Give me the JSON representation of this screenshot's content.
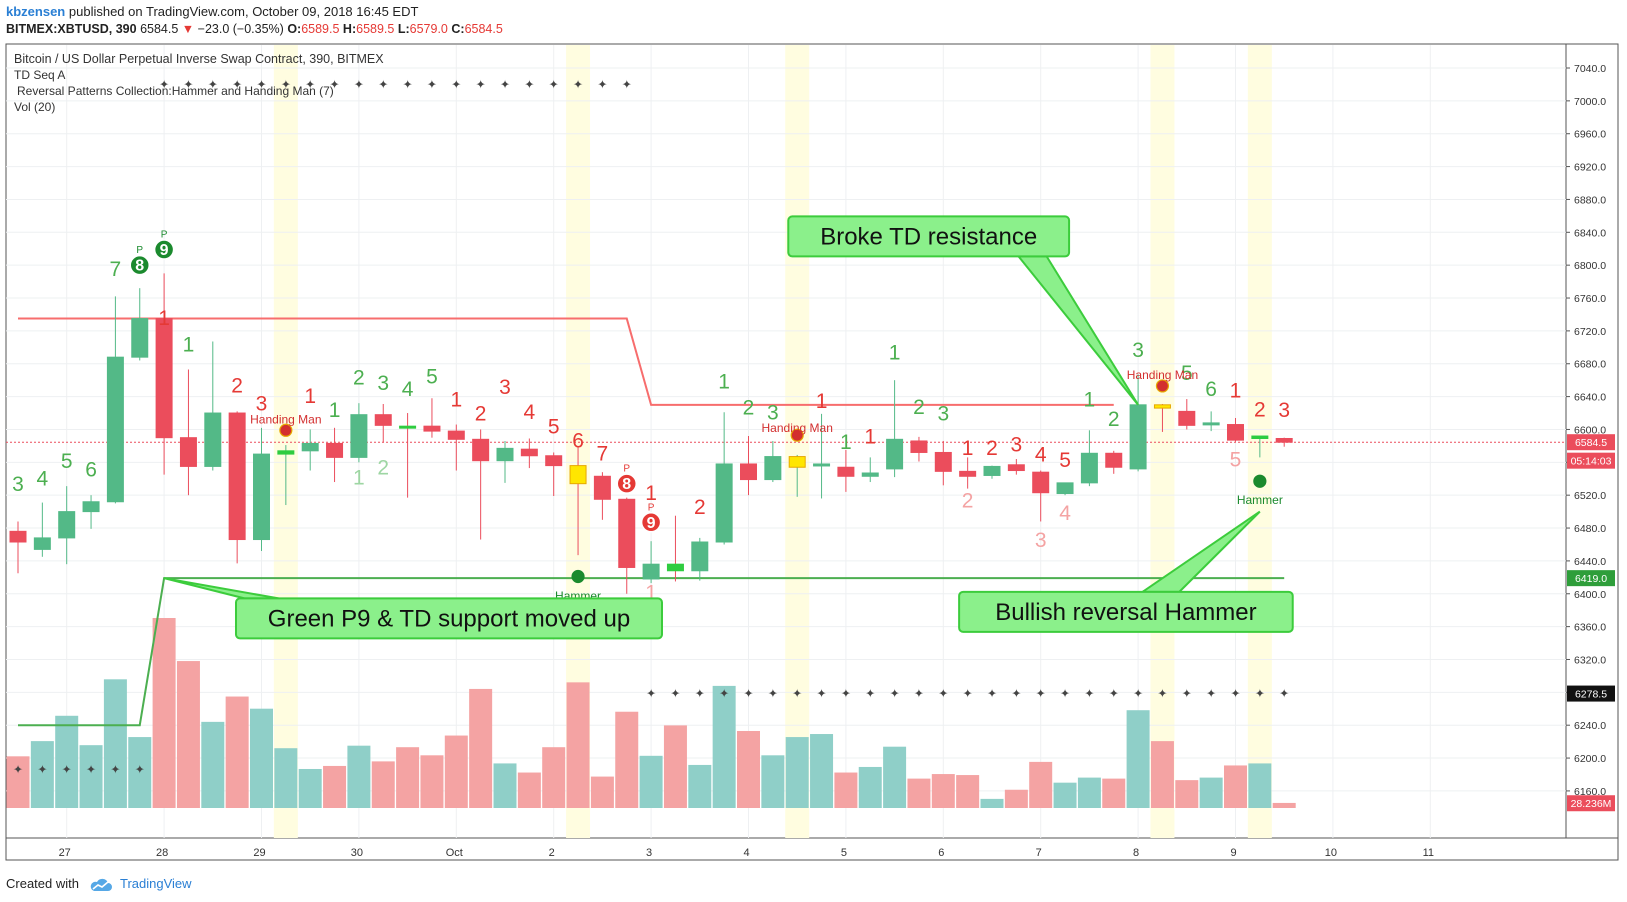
{
  "header": {
    "author": "kbzensen",
    "published_text": "published on TradingView.com, October 09, 2018 16:45 EDT",
    "symbol": "BITMEX:XBTUSD, 390",
    "last": "6584.5",
    "change": "−23.0 (−0.35%)",
    "open_label": "O:",
    "open": "6589.5",
    "high_label": "H:",
    "high": "6589.5",
    "low_label": "L:",
    "low": "6579.0",
    "close_label": "C:",
    "close": "6584.5"
  },
  "series_title": "Bitcoin / US Dollar Perpetual Inverse Swap Contract, 390, BITMEX",
  "indicators": [
    "TD Seq A",
    "Reversal Patterns Collection:Hammer and Handing Man (7)",
    "Vol (20)"
  ],
  "footer": {
    "created_with": "Created with",
    "brand": "TradingView"
  },
  "colors": {
    "up": "#53b987",
    "down": "#eb4d5c",
    "doji_up": "#2ecc40",
    "highlight": "#fffde0",
    "resistance": "#f76d6d",
    "support": "#4caf50",
    "callout_fill": "#8bf08b",
    "callout_border": "#3ccc3c",
    "vol_up": "#8fcfc8",
    "vol_down": "#f4a3a3"
  },
  "chart_data": {
    "type": "candlestick",
    "y_ticks": [
      "7040.0",
      "7000.0",
      "6960.0",
      "6920.0",
      "6880.0",
      "6840.0",
      "6800.0",
      "6760.0",
      "6720.0",
      "6680.0",
      "6640.0",
      "6600.0",
      "6560.0",
      "6520.0",
      "6480.0",
      "6440.0",
      "6400.0",
      "6360.0",
      "6320.0",
      "6280.0",
      "6240.0",
      "6200.0",
      "6160.0"
    ],
    "y_range": [
      6140,
      7060
    ],
    "x_labels": [
      {
        "label": "27",
        "i": 2
      },
      {
        "label": "28",
        "i": 6
      },
      {
        "label": "29",
        "i": 10
      },
      {
        "label": "30",
        "i": 14
      },
      {
        "label": "Oct",
        "i": 18
      },
      {
        "label": "2",
        "i": 22
      },
      {
        "label": "3",
        "i": 26
      },
      {
        "label": "4",
        "i": 30
      },
      {
        "label": "5",
        "i": 34
      },
      {
        "label": "6",
        "i": 38
      },
      {
        "label": "7",
        "i": 42
      },
      {
        "label": "8",
        "i": 46
      },
      {
        "label": "9",
        "i": 50
      },
      {
        "label": "10",
        "i": 54
      },
      {
        "label": "11",
        "i": 58
      }
    ],
    "price_tags": [
      {
        "label": "6584.5",
        "value": 6584.5,
        "color": "#eb4d5c"
      },
      {
        "label": "05:14:03",
        "value": 6562,
        "color": "#eb4d5c"
      },
      {
        "label": "6419.0",
        "value": 6419,
        "color": "#2e9e3a"
      },
      {
        "label": "6278.5",
        "value": 6278.5,
        "color": "#111111"
      },
      {
        "label": "28.236M",
        "value": 6145,
        "color": "#eb4d5c"
      }
    ],
    "candles": [
      [
        6476,
        6488,
        6425,
        6463
      ],
      [
        6454,
        6511,
        6445,
        6468
      ],
      [
        6468,
        6531,
        6436,
        6500
      ],
      [
        6500,
        6520,
        6479,
        6512
      ],
      [
        6512,
        6762,
        6510,
        6688
      ],
      [
        6688,
        6772,
        6684,
        6735
      ],
      [
        6735,
        6790,
        6545,
        6590
      ],
      [
        6590,
        6673,
        6520,
        6555
      ],
      [
        6555,
        6707,
        6550,
        6620
      ],
      [
        6620,
        6622,
        6437,
        6466
      ],
      [
        6466,
        6602,
        6452,
        6570
      ],
      [
        6570,
        6581,
        6508,
        6574
      ],
      [
        6574,
        6600,
        6550,
        6583
      ],
      [
        6583,
        6602,
        6536,
        6566
      ],
      [
        6566,
        6632,
        6560,
        6618
      ],
      [
        6618,
        6631,
        6584,
        6605
      ],
      [
        6604,
        6620,
        6517,
        6602
      ],
      [
        6604,
        6638,
        6590,
        6598
      ],
      [
        6598,
        6606,
        6550,
        6588
      ],
      [
        6588,
        6600,
        6466,
        6562
      ],
      [
        6562,
        6586,
        6535,
        6577
      ],
      [
        6576,
        6589,
        6553,
        6568
      ],
      [
        6568,
        6572,
        6519,
        6556
      ],
      [
        6556,
        6579,
        6447,
        6534
      ],
      [
        6543,
        6548,
        6490,
        6515
      ],
      [
        6515,
        6517,
        6400,
        6432
      ],
      [
        6418,
        6464,
        6413,
        6436
      ],
      [
        6436,
        6495,
        6415,
        6428
      ],
      [
        6428,
        6468,
        6416,
        6463
      ],
      [
        6463,
        6621,
        6460,
        6558
      ],
      [
        6558,
        6592,
        6520,
        6539
      ],
      [
        6539,
        6586,
        6536,
        6567
      ],
      [
        6554,
        6569,
        6518,
        6567
      ],
      [
        6558,
        6619,
        6516,
        6558
      ],
      [
        6554,
        6575,
        6524,
        6543
      ],
      [
        6543,
        6566,
        6536,
        6547
      ],
      [
        6552,
        6660,
        6542,
        6588
      ],
      [
        6586,
        6591,
        6561,
        6572
      ],
      [
        6572,
        6586,
        6532,
        6549
      ],
      [
        6549,
        6566,
        6528,
        6543
      ],
      [
        6544,
        6556,
        6540,
        6555
      ],
      [
        6557,
        6564,
        6545,
        6550
      ],
      [
        6548,
        6550,
        6488,
        6523
      ],
      [
        6522,
        6535,
        6520,
        6535
      ],
      [
        6535,
        6599,
        6531,
        6571
      ],
      [
        6571,
        6574,
        6546,
        6554
      ],
      [
        6552,
        6667,
        6549,
        6630
      ],
      [
        6630,
        6631,
        6597,
        6626
      ],
      [
        6622,
        6637,
        6600,
        6605
      ],
      [
        6608,
        6622,
        6598,
        6608
      ],
      [
        6606,
        6614,
        6585,
        6587
      ],
      [
        6589,
        6592,
        6566,
        6592
      ],
      [
        6589,
        6590,
        6579,
        6584.5
      ]
    ],
    "candle_style": {
      "27": "doji",
      "23": "yellow",
      "32": "yellow",
      "47": "yellow",
      "11": "doji",
      "51": "doji",
      "16": "doji"
    },
    "volume": [
      10.2,
      13.2,
      18.2,
      12.4,
      25.4,
      14.0,
      37.5,
      29.0,
      17.0,
      22.0,
      19.6,
      11.8,
      7.7,
      8.3,
      12.3,
      9.2,
      12.0,
      10.4,
      14.3,
      23.5,
      8.8,
      7.0,
      12.0,
      24.8,
      6.2,
      19.0,
      10.3,
      16.3,
      8.5,
      24.1,
      15.2,
      10.4,
      14.0,
      14.6,
      7.0,
      8.1,
      12.1,
      5.8,
      6.7,
      6.5,
      1.8,
      3.6,
      9.1,
      5.0,
      6.0,
      5.8,
      19.3,
      13.2,
      5.5,
      6.0,
      8.4,
      8.8,
      1.0
    ],
    "volume_max": 37.5,
    "td_counts": [
      {
        "i": 0,
        "text": "3",
        "color": "#4caf50",
        "y": 6525
      },
      {
        "i": 1,
        "text": "4",
        "color": "#4caf50",
        "y": 6532
      },
      {
        "i": 2,
        "text": "5",
        "color": "#4caf50",
        "y": 6553
      },
      {
        "i": 3,
        "text": "6",
        "color": "#4caf50",
        "y": 6543
      },
      {
        "i": 4,
        "text": "7",
        "color": "#4caf50",
        "y": 6787
      },
      {
        "i": 7,
        "text": "1",
        "color": "#4caf50",
        "y": 6695
      },
      {
        "i": 6,
        "text": "1",
        "color": "#e53935",
        "y": 6727
      },
      {
        "i": 9,
        "text": "2",
        "color": "#e53935",
        "y": 6645
      },
      {
        "i": 10,
        "text": "3",
        "color": "#e53935",
        "y": 6623
      },
      {
        "i": 12,
        "text": "1",
        "color": "#e53935",
        "y": 6632
      },
      {
        "i": 13,
        "text": "1",
        "color": "#4caf50",
        "y": 6615
      },
      {
        "i": 14,
        "text": "2",
        "color": "#4caf50",
        "y": 6655
      },
      {
        "i": 15,
        "text": "3",
        "color": "#4caf50",
        "y": 6648
      },
      {
        "i": 16,
        "text": "4",
        "color": "#4caf50",
        "y": 6641
      },
      {
        "i": 17,
        "text": "5",
        "color": "#4caf50",
        "y": 6656
      },
      {
        "i": 18,
        "text": "1",
        "color": "#e53935",
        "y": 6628
      },
      {
        "i": 19,
        "text": "2",
        "color": "#e53935",
        "y": 6611
      },
      {
        "i": 20,
        "text": "3",
        "color": "#e53935",
        "y": 6643
      },
      {
        "i": 21,
        "text": "4",
        "color": "#e53935",
        "y": 6613
      },
      {
        "i": 22,
        "text": "5",
        "color": "#e53935",
        "y": 6595
      },
      {
        "i": 23,
        "text": "6",
        "color": "#e53935",
        "y": 6578
      },
      {
        "i": 24,
        "text": "7",
        "color": "#e53935",
        "y": 6562
      },
      {
        "i": 14,
        "text": "1",
        "color": "#9ed6a3",
        "y": 6533
      },
      {
        "i": 15,
        "text": "2",
        "color": "#9ed6a3",
        "y": 6545
      },
      {
        "i": 26,
        "text": "1",
        "color": "#e53935",
        "y": 6514
      },
      {
        "i": 28,
        "text": "2",
        "color": "#e53935",
        "y": 6497
      },
      {
        "i": 26,
        "text": "1",
        "color": "#f4a3a3",
        "y": 6393
      },
      {
        "i": 29,
        "text": "1",
        "color": "#4caf50",
        "y": 6650
      },
      {
        "i": 30,
        "text": "2",
        "color": "#4caf50",
        "y": 6618
      },
      {
        "i": 31,
        "text": "3",
        "color": "#4caf50",
        "y": 6612
      },
      {
        "i": 33,
        "text": "1",
        "color": "#e53935",
        "y": 6626
      },
      {
        "i": 34,
        "text": "1",
        "color": "#4caf50",
        "y": 6576
      },
      {
        "i": 35,
        "text": "1",
        "color": "#e53935",
        "y": 6583
      },
      {
        "i": 36,
        "text": "1",
        "color": "#4caf50",
        "y": 6685
      },
      {
        "i": 37,
        "text": "2",
        "color": "#4caf50",
        "y": 6619
      },
      {
        "i": 38,
        "text": "3",
        "color": "#4caf50",
        "y": 6611
      },
      {
        "i": 39,
        "text": "1",
        "color": "#e53935",
        "y": 6569
      },
      {
        "i": 40,
        "text": "2",
        "color": "#e53935",
        "y": 6569
      },
      {
        "i": 41,
        "text": "3",
        "color": "#e53935",
        "y": 6573
      },
      {
        "i": 42,
        "text": "4",
        "color": "#e53935",
        "y": 6561
      },
      {
        "i": 43,
        "text": "5",
        "color": "#e53935",
        "y": 6554
      },
      {
        "i": 39,
        "text": "2",
        "color": "#f4a3a3",
        "y": 6505
      },
      {
        "i": 42,
        "text": "3",
        "color": "#f4a3a3",
        "y": 6457
      },
      {
        "i": 43,
        "text": "4",
        "color": "#f4a3a3",
        "y": 6490
      },
      {
        "i": 44,
        "text": "1",
        "color": "#4caf50",
        "y": 6628
      },
      {
        "i": 45,
        "text": "2",
        "color": "#4caf50",
        "y": 6604
      },
      {
        "i": 46,
        "text": "3",
        "color": "#4caf50",
        "y": 6688
      },
      {
        "i": 48,
        "text": "5",
        "color": "#4caf50",
        "y": 6660
      },
      {
        "i": 49,
        "text": "6",
        "color": "#4caf50",
        "y": 6641
      },
      {
        "i": 50,
        "text": "1",
        "color": "#e53935",
        "y": 6639
      },
      {
        "i": 51,
        "text": "2",
        "color": "#e53935",
        "y": 6616
      },
      {
        "i": 52,
        "text": "3",
        "color": "#e53935",
        "y": 6615
      },
      {
        "i": 50,
        "text": "5",
        "color": "#f4a3a3",
        "y": 6555
      }
    ],
    "td_badges": [
      {
        "i": 5,
        "text": "8",
        "color": "#1b8a2e",
        "y": 6800
      },
      {
        "i": 6,
        "text": "9",
        "color": "#1b8a2e",
        "y": 6819
      },
      {
        "i": 25,
        "text": "8",
        "color": "#e53935",
        "y": 6534
      },
      {
        "i": 26,
        "text": "9",
        "color": "#e53935",
        "y": 6487
      }
    ],
    "patterns": [
      {
        "i": 11,
        "label": "Handing Man",
        "kind": "hanging",
        "dot_y": 6599,
        "label_y": 6612
      },
      {
        "i": 23,
        "label": "Hammer",
        "kind": "hammer",
        "dot_y": 6421,
        "label_y": 6397
      },
      {
        "i": 32,
        "label": "Handing Man",
        "kind": "hanging",
        "dot_y": 6593,
        "label_y": 6602
      },
      {
        "i": 47,
        "label": "Handing Man",
        "kind": "hanging",
        "dot_y": 6653,
        "label_y": 6666
      },
      {
        "i": 51,
        "label": "Hammer",
        "kind": "hammer",
        "dot_y": 6537,
        "label_y": 6514
      }
    ],
    "highlight_bars": [
      11,
      23,
      32,
      47,
      51
    ],
    "resistance_line": [
      [
        0,
        6735
      ],
      [
        25,
        6735
      ],
      [
        26,
        6630
      ],
      [
        45,
        6630
      ]
    ],
    "support_line": [
      [
        0,
        6240
      ],
      [
        5,
        6240
      ],
      [
        6,
        6419
      ],
      [
        52,
        6419
      ]
    ],
    "dots_top": {
      "y": 7020,
      "from": 6,
      "to": 25
    },
    "dots_mid": {
      "y": 6278.5,
      "from": 26,
      "to": 52
    },
    "dots_low": {
      "y": 6186,
      "from": 0,
      "to": 5
    },
    "callouts": [
      {
        "text": "Broke TD resistance",
        "tip_i": 46,
        "tip_y": 6630,
        "box_i": 37.4,
        "box_y": 6835
      },
      {
        "text": "Green P9 & TD support moved up",
        "tip_i": 6,
        "tip_y": 6419,
        "box_i": 17.7,
        "box_y": 6370
      },
      {
        "text": "Bullish reversal Hammer",
        "tip_i": 51,
        "tip_y": 6500,
        "box_i": 45.5,
        "box_y": 6378
      }
    ]
  }
}
